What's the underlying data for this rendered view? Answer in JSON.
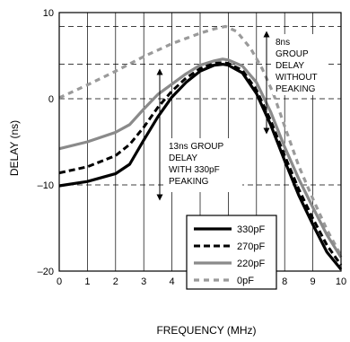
{
  "chart_data": {
    "type": "line",
    "xlabel": "FREQUENCY (MHz)",
    "ylabel": "DELAY (ns)",
    "xlim": [
      0,
      10
    ],
    "ylim": [
      -20,
      10
    ],
    "x_ticks": [
      0,
      1,
      2,
      3,
      4,
      5,
      6,
      7,
      8,
      9,
      10
    ],
    "y_ticks": [
      -20,
      -10,
      0,
      10
    ],
    "grid": "on",
    "legend_position": "bottom-right",
    "series": [
      {
        "name": "330pF",
        "color": "#000000",
        "style": "solid-thick",
        "points": [
          [
            0,
            -10.1
          ],
          [
            1,
            -9.6
          ],
          [
            2,
            -8.7
          ],
          [
            2.5,
            -7.6
          ],
          [
            3,
            -4.8
          ],
          [
            3.5,
            -2.1
          ],
          [
            4,
            0.2
          ],
          [
            4.5,
            1.9
          ],
          [
            5,
            3.2
          ],
          [
            5.5,
            3.9
          ],
          [
            5.8,
            4.0
          ],
          [
            6,
            3.9
          ],
          [
            6.5,
            3.0
          ],
          [
            7,
            0.6
          ],
          [
            7.5,
            -3.0
          ],
          [
            8,
            -7.2
          ],
          [
            8.5,
            -11.2
          ],
          [
            9,
            -14.6
          ],
          [
            9.5,
            -17.8
          ],
          [
            10,
            -19.8
          ]
        ]
      },
      {
        "name": "270pF",
        "color": "#000000",
        "style": "dashed",
        "points": [
          [
            0,
            -8.6
          ],
          [
            1,
            -7.9
          ],
          [
            2,
            -6.6
          ],
          [
            2.5,
            -5.3
          ],
          [
            3,
            -3.3
          ],
          [
            3.5,
            -1.0
          ],
          [
            4,
            0.9
          ],
          [
            4.5,
            2.4
          ],
          [
            5,
            3.5
          ],
          [
            5.5,
            4.1
          ],
          [
            5.8,
            4.2
          ],
          [
            6,
            4.1
          ],
          [
            6.5,
            3.3
          ],
          [
            7,
            1.0
          ],
          [
            7.5,
            -2.5
          ],
          [
            8,
            -6.6
          ],
          [
            8.5,
            -10.5
          ],
          [
            9,
            -13.9
          ],
          [
            9.5,
            -17.0
          ],
          [
            10,
            -19.3
          ]
        ]
      },
      {
        "name": "220pF",
        "color": "#8a8a8a",
        "style": "solid-gray",
        "points": [
          [
            0,
            -5.8
          ],
          [
            1,
            -5.0
          ],
          [
            2,
            -3.9
          ],
          [
            2.5,
            -3.0
          ],
          [
            3,
            -1.2
          ],
          [
            3.5,
            0.5
          ],
          [
            4,
            1.7
          ],
          [
            4.5,
            2.9
          ],
          [
            5,
            3.9
          ],
          [
            5.5,
            4.4
          ],
          [
            5.8,
            4.6
          ],
          [
            6,
            4.5
          ],
          [
            6.5,
            3.8
          ],
          [
            7,
            1.9
          ],
          [
            7.5,
            -1.5
          ],
          [
            8,
            -5.6
          ],
          [
            8.5,
            -9.3
          ],
          [
            9,
            -12.6
          ],
          [
            9.5,
            -15.8
          ],
          [
            10,
            -18.4
          ]
        ]
      },
      {
        "name": "0pF",
        "color": "#9a9a9a",
        "style": "dashed-gray",
        "points": [
          [
            0,
            0.1
          ],
          [
            1,
            1.6
          ],
          [
            2,
            3.2
          ],
          [
            3,
            4.9
          ],
          [
            4,
            6.4
          ],
          [
            5,
            7.6
          ],
          [
            5.5,
            8.1
          ],
          [
            5.9,
            8.4
          ],
          [
            6.3,
            7.8
          ],
          [
            6.8,
            5.8
          ],
          [
            7.2,
            3.5
          ],
          [
            7.6,
            0.6
          ],
          [
            8,
            -3.2
          ],
          [
            8.5,
            -7.8
          ],
          [
            9,
            -11.6
          ],
          [
            9.5,
            -15.2
          ],
          [
            10,
            -18.2
          ]
        ]
      }
    ],
    "annotations": [
      {
        "lines": [
          "8ns",
          "GROUP",
          "DELAY",
          "WITHOUT",
          "PEAKING"
        ]
      },
      {
        "lines": [
          "13ns GROUP",
          "DELAY",
          "WITH 330pF",
          "PEAKING"
        ]
      }
    ]
  }
}
